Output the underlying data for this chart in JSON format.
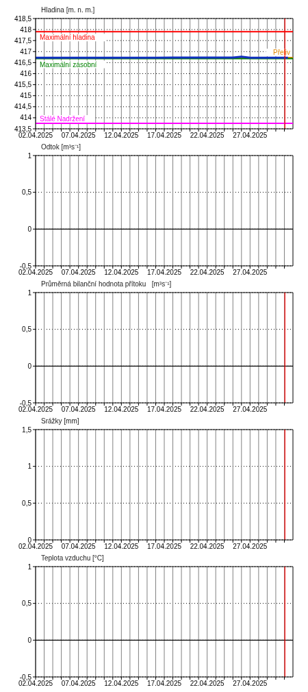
{
  "chart_data": [
    {
      "type": "line",
      "title": "Hladina [m. n. m.]",
      "xlim": [
        "2025-04-02",
        "2025-05-02"
      ],
      "ylim": [
        413.5,
        418.5
      ],
      "yticks": [
        {
          "value": 413.5,
          "label": "413,5"
        },
        414,
        {
          "value": 414.5,
          "label": "414,5"
        },
        415,
        {
          "value": 415.5,
          "label": "415,5"
        },
        416,
        {
          "value": 416.5,
          "label": "416,5"
        },
        417,
        {
          "value": 417.5,
          "label": "417,5"
        },
        418,
        {
          "value": 418.5,
          "label": "418,5"
        }
      ],
      "xticks": [
        {
          "value": "2025-04-02",
          "label": "02.04.2025"
        },
        {
          "value": "2025-04-03",
          "label": null
        },
        {
          "value": "2025-04-04",
          "label": null
        },
        {
          "value": "2025-04-05",
          "label": null
        },
        {
          "value": "2025-04-06",
          "label": null
        },
        {
          "value": "2025-04-07",
          "label": "07.04.2025"
        },
        {
          "value": "2025-04-08",
          "label": null
        },
        {
          "value": "2025-04-09",
          "label": null
        },
        {
          "value": "2025-04-10",
          "label": null
        },
        {
          "value": "2025-04-11",
          "label": null
        },
        {
          "value": "2025-04-12",
          "label": "12.04.2025"
        },
        {
          "value": "2025-04-13",
          "label": null
        },
        {
          "value": "2025-04-14",
          "label": null
        },
        {
          "value": "2025-04-15",
          "label": null
        },
        {
          "value": "2025-04-16",
          "label": null
        },
        {
          "value": "2025-04-17",
          "label": "17.04.2025"
        },
        {
          "value": "2025-04-18",
          "label": null
        },
        {
          "value": "2025-04-19",
          "label": null
        },
        {
          "value": "2025-04-20",
          "label": null
        },
        {
          "value": "2025-04-21",
          "label": null
        },
        {
          "value": "2025-04-22",
          "label": "22.04.2025"
        },
        {
          "value": "2025-04-23",
          "label": null
        },
        {
          "value": "2025-04-24",
          "label": null
        },
        {
          "value": "2025-04-25",
          "label": null
        },
        {
          "value": "2025-04-26",
          "label": null
        },
        {
          "value": "2025-04-27",
          "label": "27.04.2025"
        },
        {
          "value": "2025-04-28",
          "label": null
        },
        {
          "value": "2025-04-29",
          "label": null
        },
        {
          "value": "2025-04-30",
          "label": null
        },
        {
          "value": "2025-05-01",
          "label": null
        }
      ],
      "grid": true,
      "marker": "none",
      "line_style": "solid",
      "series": [
        {
          "color": "#1030c0",
          "x": [
            "2025-04-02",
            "2025-04-04",
            "2025-04-06",
            "2025-04-08",
            "2025-04-10",
            "2025-04-12",
            "2025-04-14",
            "2025-04-16",
            "2025-04-18",
            "2025-04-19",
            "2025-04-21",
            "2025-04-23",
            "2025-04-25",
            "2025-04-26",
            "2025-04-27",
            "2025-04-29",
            "2025-05-01T10:00"
          ],
          "values": [
            416.72,
            416.72,
            416.72,
            416.72,
            416.72,
            416.72,
            416.72,
            416.72,
            416.73,
            416.73,
            416.73,
            416.73,
            416.73,
            416.77,
            416.72,
            416.72,
            416.72
          ]
        }
      ],
      "ref_lines": [
        {
          "axis": "y",
          "value": 417.9,
          "label": "Maximální hladina",
          "color": "#ff0000"
        },
        {
          "axis": "y",
          "value": 416.73,
          "label": "Přeliv",
          "color": "#e08600"
        },
        {
          "axis": "y",
          "value": 416.68,
          "label": "Maximální zásobní",
          "color": "#008000"
        },
        {
          "axis": "y",
          "value": 413.75,
          "label": "Stálé Nadržení",
          "color": "#ff00ff"
        },
        {
          "axis": "x",
          "value": "2025-05-01T01:30",
          "color": "#ff0000"
        }
      ]
    },
    {
      "type": "line",
      "title": "Odtok [m³s⁻¹]",
      "xlim": [
        "2025-04-02",
        "2025-05-02"
      ],
      "ylim": [
        -0.5,
        1
      ],
      "yticks": [
        {
          "value": -0.5,
          "label": "-0,5"
        },
        0,
        {
          "value": 0.5,
          "label": "0,5"
        },
        1
      ],
      "xticks": [
        {
          "value": "2025-04-02",
          "label": "02.04.2025"
        },
        {
          "value": "2025-04-03",
          "label": null
        },
        {
          "value": "2025-04-04",
          "label": null
        },
        {
          "value": "2025-04-05",
          "label": null
        },
        {
          "value": "2025-04-06",
          "label": null
        },
        {
          "value": "2025-04-07",
          "label": "07.04.2025"
        },
        {
          "value": "2025-04-08",
          "label": null
        },
        {
          "value": "2025-04-09",
          "label": null
        },
        {
          "value": "2025-04-10",
          "label": null
        },
        {
          "value": "2025-04-11",
          "label": null
        },
        {
          "value": "2025-04-12",
          "label": "12.04.2025"
        },
        {
          "value": "2025-04-13",
          "label": null
        },
        {
          "value": "2025-04-14",
          "label": null
        },
        {
          "value": "2025-04-15",
          "label": null
        },
        {
          "value": "2025-04-16",
          "label": null
        },
        {
          "value": "2025-04-17",
          "label": "17.04.2025"
        },
        {
          "value": "2025-04-18",
          "label": null
        },
        {
          "value": "2025-04-19",
          "label": null
        },
        {
          "value": "2025-04-20",
          "label": null
        },
        {
          "value": "2025-04-21",
          "label": null
        },
        {
          "value": "2025-04-22",
          "label": "22.04.2025"
        },
        {
          "value": "2025-04-23",
          "label": null
        },
        {
          "value": "2025-04-24",
          "label": null
        },
        {
          "value": "2025-04-25",
          "label": null
        },
        {
          "value": "2025-04-26",
          "label": null
        },
        {
          "value": "2025-04-27",
          "label": "27.04.2025"
        },
        {
          "value": "2025-04-28",
          "label": null
        },
        {
          "value": "2025-04-29",
          "label": null
        },
        {
          "value": "2025-04-30",
          "label": null
        },
        {
          "value": "2025-05-01",
          "label": null
        }
      ],
      "grid": true,
      "ref_lines": [
        {
          "axis": "y",
          "value": 0,
          "color": "#000000"
        }
      ]
    },
    {
      "type": "line",
      "title": "Průměrná bilanční hodnota přítoku   [m³s⁻¹]",
      "xlim": [
        "2025-04-02",
        "2025-05-02"
      ],
      "ylim": [
        -0.5,
        1
      ],
      "yticks": [
        {
          "value": -0.5,
          "label": "-0,5"
        },
        0,
        {
          "value": 0.5,
          "label": "0,5"
        },
        1
      ],
      "xticks": [
        {
          "value": "2025-04-02",
          "label": "02.04.2025"
        },
        {
          "value": "2025-04-03",
          "label": null
        },
        {
          "value": "2025-04-04",
          "label": null
        },
        {
          "value": "2025-04-05",
          "label": null
        },
        {
          "value": "2025-04-06",
          "label": null
        },
        {
          "value": "2025-04-07",
          "label": "07.04.2025"
        },
        {
          "value": "2025-04-08",
          "label": null
        },
        {
          "value": "2025-04-09",
          "label": null
        },
        {
          "value": "2025-04-10",
          "label": null
        },
        {
          "value": "2025-04-11",
          "label": null
        },
        {
          "value": "2025-04-12",
          "label": "12.04.2025"
        },
        {
          "value": "2025-04-13",
          "label": null
        },
        {
          "value": "2025-04-14",
          "label": null
        },
        {
          "value": "2025-04-15",
          "label": null
        },
        {
          "value": "2025-04-16",
          "label": null
        },
        {
          "value": "2025-04-17",
          "label": "17.04.2025"
        },
        {
          "value": "2025-04-18",
          "label": null
        },
        {
          "value": "2025-04-19",
          "label": null
        },
        {
          "value": "2025-04-20",
          "label": null
        },
        {
          "value": "2025-04-21",
          "label": null
        },
        {
          "value": "2025-04-22",
          "label": "22.04.2025"
        },
        {
          "value": "2025-04-23",
          "label": null
        },
        {
          "value": "2025-04-24",
          "label": null
        },
        {
          "value": "2025-04-25",
          "label": null
        },
        {
          "value": "2025-04-26",
          "label": null
        },
        {
          "value": "2025-04-27",
          "label": "27.04.2025"
        },
        {
          "value": "2025-04-28",
          "label": null
        },
        {
          "value": "2025-04-29",
          "label": null
        },
        {
          "value": "2025-04-30",
          "label": null
        },
        {
          "value": "2025-05-01",
          "label": null
        }
      ],
      "grid": true,
      "ref_lines": [
        {
          "axis": "y",
          "value": 0,
          "color": "#000000"
        },
        {
          "axis": "x",
          "value": "2025-05-01T01:30",
          "color": "#ff0000"
        }
      ]
    },
    {
      "type": "line",
      "title": "Srážky [mm]",
      "xlim": [
        "2025-04-02",
        "2025-05-02"
      ],
      "ylim": [
        0,
        1.5
      ],
      "yticks": [
        0,
        {
          "value": 0.5,
          "label": "0,5"
        },
        1,
        {
          "value": 1.5,
          "label": "1,5"
        }
      ],
      "xticks": [
        {
          "value": "2025-04-02",
          "label": "02.04.2025"
        },
        {
          "value": "2025-04-03",
          "label": null
        },
        {
          "value": "2025-04-04",
          "label": null
        },
        {
          "value": "2025-04-05",
          "label": null
        },
        {
          "value": "2025-04-06",
          "label": null
        },
        {
          "value": "2025-04-07",
          "label": "07.04.2025"
        },
        {
          "value": "2025-04-08",
          "label": null
        },
        {
          "value": "2025-04-09",
          "label": null
        },
        {
          "value": "2025-04-10",
          "label": null
        },
        {
          "value": "2025-04-11",
          "label": null
        },
        {
          "value": "2025-04-12",
          "label": "12.04.2025"
        },
        {
          "value": "2025-04-13",
          "label": null
        },
        {
          "value": "2025-04-14",
          "label": null
        },
        {
          "value": "2025-04-15",
          "label": null
        },
        {
          "value": "2025-04-16",
          "label": null
        },
        {
          "value": "2025-04-17",
          "label": "17.04.2025"
        },
        {
          "value": "2025-04-18",
          "label": null
        },
        {
          "value": "2025-04-19",
          "label": null
        },
        {
          "value": "2025-04-20",
          "label": null
        },
        {
          "value": "2025-04-21",
          "label": null
        },
        {
          "value": "2025-04-22",
          "label": "22.04.2025"
        },
        {
          "value": "2025-04-23",
          "label": null
        },
        {
          "value": "2025-04-24",
          "label": null
        },
        {
          "value": "2025-04-25",
          "label": null
        },
        {
          "value": "2025-04-26",
          "label": null
        },
        {
          "value": "2025-04-27",
          "label": "27.04.2025"
        },
        {
          "value": "2025-04-28",
          "label": null
        },
        {
          "value": "2025-04-29",
          "label": null
        },
        {
          "value": "2025-04-30",
          "label": null
        },
        {
          "value": "2025-05-01",
          "label": null
        }
      ],
      "grid": true,
      "ref_lines": [
        {
          "axis": "x",
          "value": "2025-05-01T01:30",
          "color": "#ff0000"
        }
      ]
    },
    {
      "type": "line",
      "title": "Teplota vzduchu [°C]",
      "xlim": [
        "2025-04-02",
        "2025-05-02"
      ],
      "ylim": [
        -0.5,
        1
      ],
      "yticks": [
        {
          "value": -0.5,
          "label": "-0,5"
        },
        0,
        {
          "value": 0.5,
          "label": "0,5"
        },
        1
      ],
      "xticks": [
        {
          "value": "2025-04-02",
          "label": "02.04.2025"
        },
        {
          "value": "2025-04-03",
          "label": null
        },
        {
          "value": "2025-04-04",
          "label": null
        },
        {
          "value": "2025-04-05",
          "label": null
        },
        {
          "value": "2025-04-06",
          "label": null
        },
        {
          "value": "2025-04-07",
          "label": "07.04.2025"
        },
        {
          "value": "2025-04-08",
          "label": null
        },
        {
          "value": "2025-04-09",
          "label": null
        },
        {
          "value": "2025-04-10",
          "label": null
        },
        {
          "value": "2025-04-11",
          "label": null
        },
        {
          "value": "2025-04-12",
          "label": "12.04.2025"
        },
        {
          "value": "2025-04-13",
          "label": null
        },
        {
          "value": "2025-04-14",
          "label": null
        },
        {
          "value": "2025-04-15",
          "label": null
        },
        {
          "value": "2025-04-16",
          "label": null
        },
        {
          "value": "2025-04-17",
          "label": "17.04.2025"
        },
        {
          "value": "2025-04-18",
          "label": null
        },
        {
          "value": "2025-04-19",
          "label": null
        },
        {
          "value": "2025-04-20",
          "label": null
        },
        {
          "value": "2025-04-21",
          "label": null
        },
        {
          "value": "2025-04-22",
          "label": "22.04.2025"
        },
        {
          "value": "2025-04-23",
          "label": null
        },
        {
          "value": "2025-04-24",
          "label": null
        },
        {
          "value": "2025-04-25",
          "label": null
        },
        {
          "value": "2025-04-26",
          "label": null
        },
        {
          "value": "2025-04-27",
          "label": "27.04.2025"
        },
        {
          "value": "2025-04-28",
          "label": null
        },
        {
          "value": "2025-04-29",
          "label": null
        },
        {
          "value": "2025-04-30",
          "label": null
        },
        {
          "value": "2025-05-01",
          "label": null
        }
      ],
      "grid": true,
      "ref_lines": [
        {
          "axis": "y",
          "value": 0,
          "color": "#000000"
        },
        {
          "axis": "x",
          "value": "2025-05-01T01:30",
          "color": "#ff0000"
        }
      ]
    }
  ]
}
